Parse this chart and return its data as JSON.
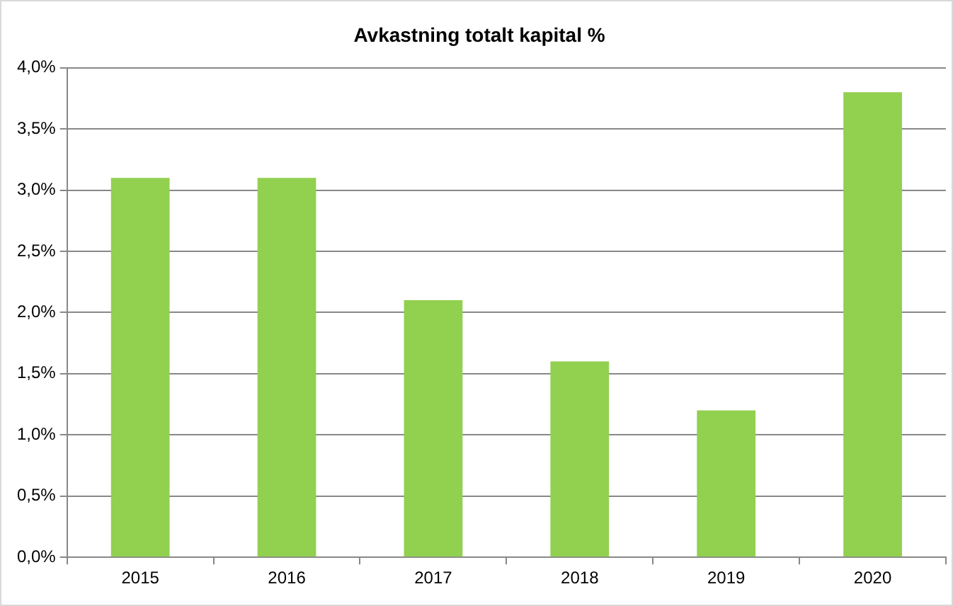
{
  "chart_data": {
    "type": "bar",
    "title": "Avkastning totalt kapital %",
    "categories": [
      "2015",
      "2016",
      "2017",
      "2018",
      "2019",
      "2020"
    ],
    "values": [
      3.1,
      3.1,
      2.1,
      1.6,
      1.2,
      3.8
    ],
    "color": "#92d050",
    "ylim": [
      0,
      4
    ],
    "yticks": [
      {
        "value": 0,
        "label": "0,0%"
      },
      {
        "value": 0.5,
        "label": "0,5%"
      },
      {
        "value": 1,
        "label": "1,0%"
      },
      {
        "value": 1.5,
        "label": "1,5%"
      },
      {
        "value": 2,
        "label": "2,0%"
      },
      {
        "value": 2.5,
        "label": "2,5%"
      },
      {
        "value": 3,
        "label": "3,0%"
      },
      {
        "value": 3.5,
        "label": "3,5%"
      },
      {
        "value": 4,
        "label": "4,0%"
      }
    ],
    "grid": "y",
    "legend": false
  }
}
